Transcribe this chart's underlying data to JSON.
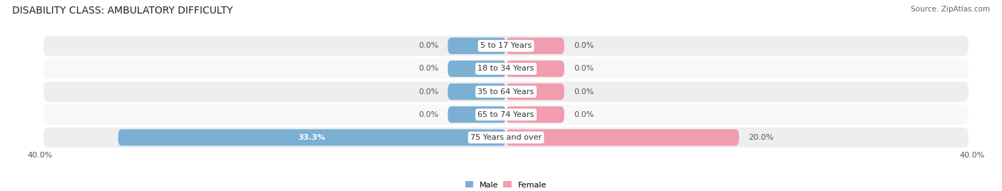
{
  "title": "DISABILITY CLASS: AMBULATORY DIFFICULTY",
  "source": "Source: ZipAtlas.com",
  "categories": [
    "5 to 17 Years",
    "18 to 34 Years",
    "35 to 64 Years",
    "65 to 74 Years",
    "75 Years and over"
  ],
  "male_values": [
    0.0,
    0.0,
    0.0,
    0.0,
    33.3
  ],
  "female_values": [
    0.0,
    0.0,
    0.0,
    0.0,
    20.0
  ],
  "male_color": "#7bafd4",
  "female_color": "#f19caf",
  "row_bg_even": "#eeeeee",
  "row_bg_odd": "#f8f8f8",
  "x_max": 40.0,
  "x_min": -40.0,
  "zero_bar_width": 5.0,
  "title_fontsize": 10,
  "label_fontsize": 8,
  "tick_fontsize": 8,
  "source_fontsize": 7.5,
  "cat_fontsize": 8
}
